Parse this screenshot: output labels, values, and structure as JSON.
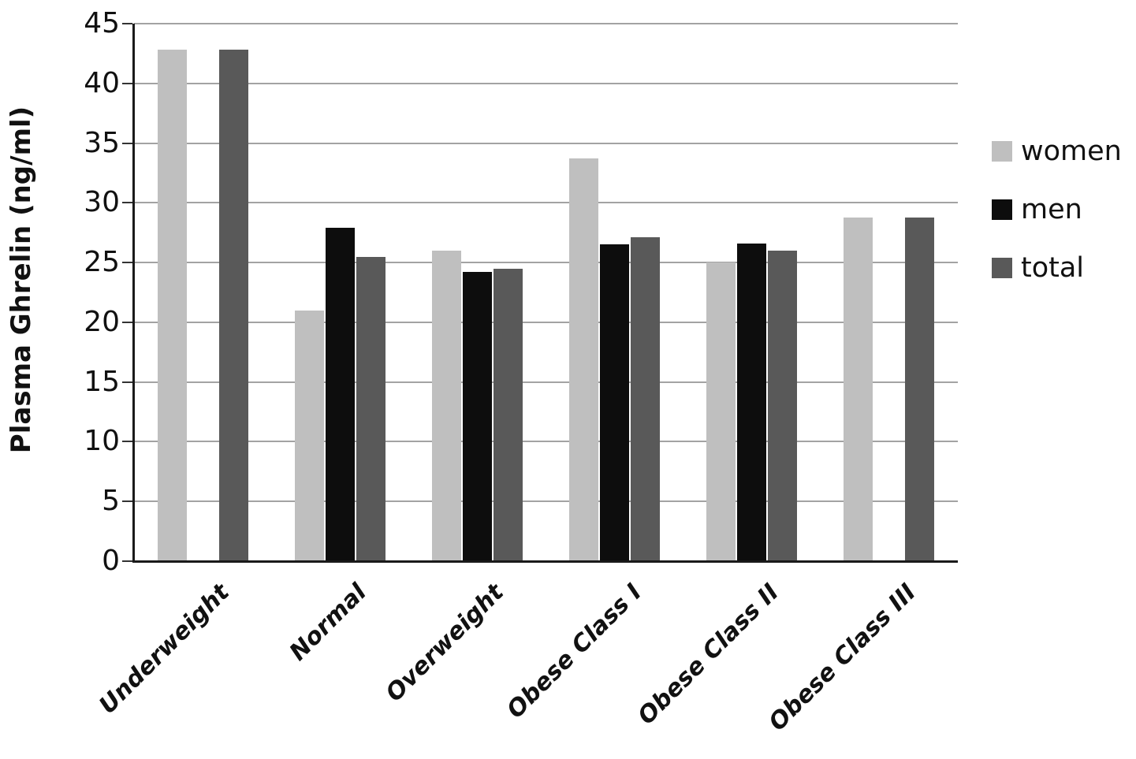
{
  "chart_data": {
    "type": "bar",
    "title": "",
    "xlabel": "",
    "ylabel": "Plasma Ghrelin (ng/ml)",
    "ylim": [
      0,
      45
    ],
    "ytick_step": 5,
    "yticks": [
      0,
      5,
      10,
      15,
      20,
      25,
      30,
      35,
      40,
      45
    ],
    "grid": true,
    "legend_position": "right",
    "background_color": "#ffffff",
    "gridline_color": "#a3a3a3",
    "axis_color": "#1a1a1a",
    "categories": [
      "Underweight",
      "Normal",
      "Overweight",
      "Obese Class I",
      "Obese Class II",
      "Obese Class III"
    ],
    "series": [
      {
        "name": "women",
        "color": "#bfbfbf",
        "values": [
          42.8,
          21.0,
          26.0,
          33.7,
          25.0,
          28.8
        ]
      },
      {
        "name": "men",
        "color": "#0d0d0d",
        "values": [
          null,
          27.9,
          24.2,
          26.5,
          26.6,
          null
        ]
      },
      {
        "name": "total",
        "color": "#595959",
        "values": [
          42.8,
          25.5,
          24.5,
          27.1,
          26.0,
          28.8
        ]
      }
    ]
  }
}
